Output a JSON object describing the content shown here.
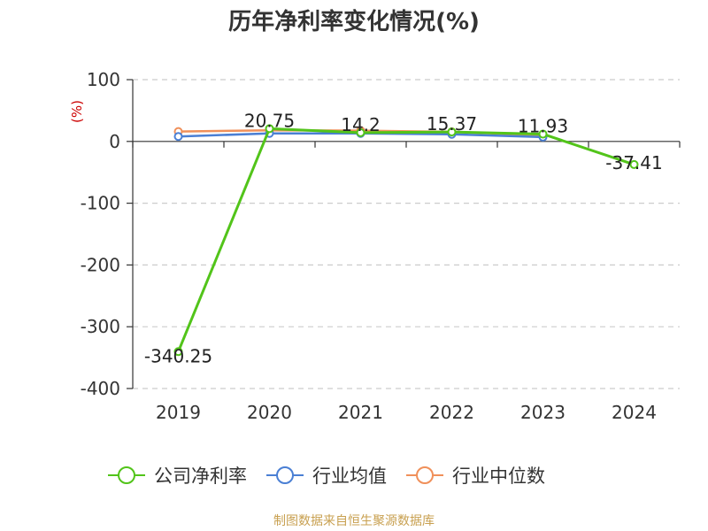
{
  "chart_data": {
    "type": "line",
    "title": "历年净利率变化情况(%)",
    "ylabel": "(%)",
    "categories": [
      "2019",
      "2020",
      "2021",
      "2022",
      "2023",
      "2024"
    ],
    "ylim": [
      -400,
      100
    ],
    "yticks": [
      100,
      0,
      -100,
      -200,
      -300,
      -400
    ],
    "grid": true,
    "legend_position": "bottom",
    "series": [
      {
        "name": "公司净利率",
        "color": "#52c41a",
        "values": [
          -340.25,
          20.75,
          14.2,
          15.37,
          11.93,
          -37.41
        ],
        "labels": [
          "-340.25",
          "20.75",
          "14.2",
          "15.37",
          "11.93",
          "-37.41"
        ]
      },
      {
        "name": "行业均值",
        "color": "#4a7fd4",
        "values": [
          8.0,
          13.0,
          13.0,
          11.5,
          7.0,
          null
        ]
      },
      {
        "name": "行业中位数",
        "color": "#f0905a",
        "values": [
          16.0,
          18.0,
          17.5,
          15.5,
          10.0,
          null
        ]
      }
    ]
  },
  "footer": {
    "source": "制图数据来自恒生聚源数据库"
  }
}
